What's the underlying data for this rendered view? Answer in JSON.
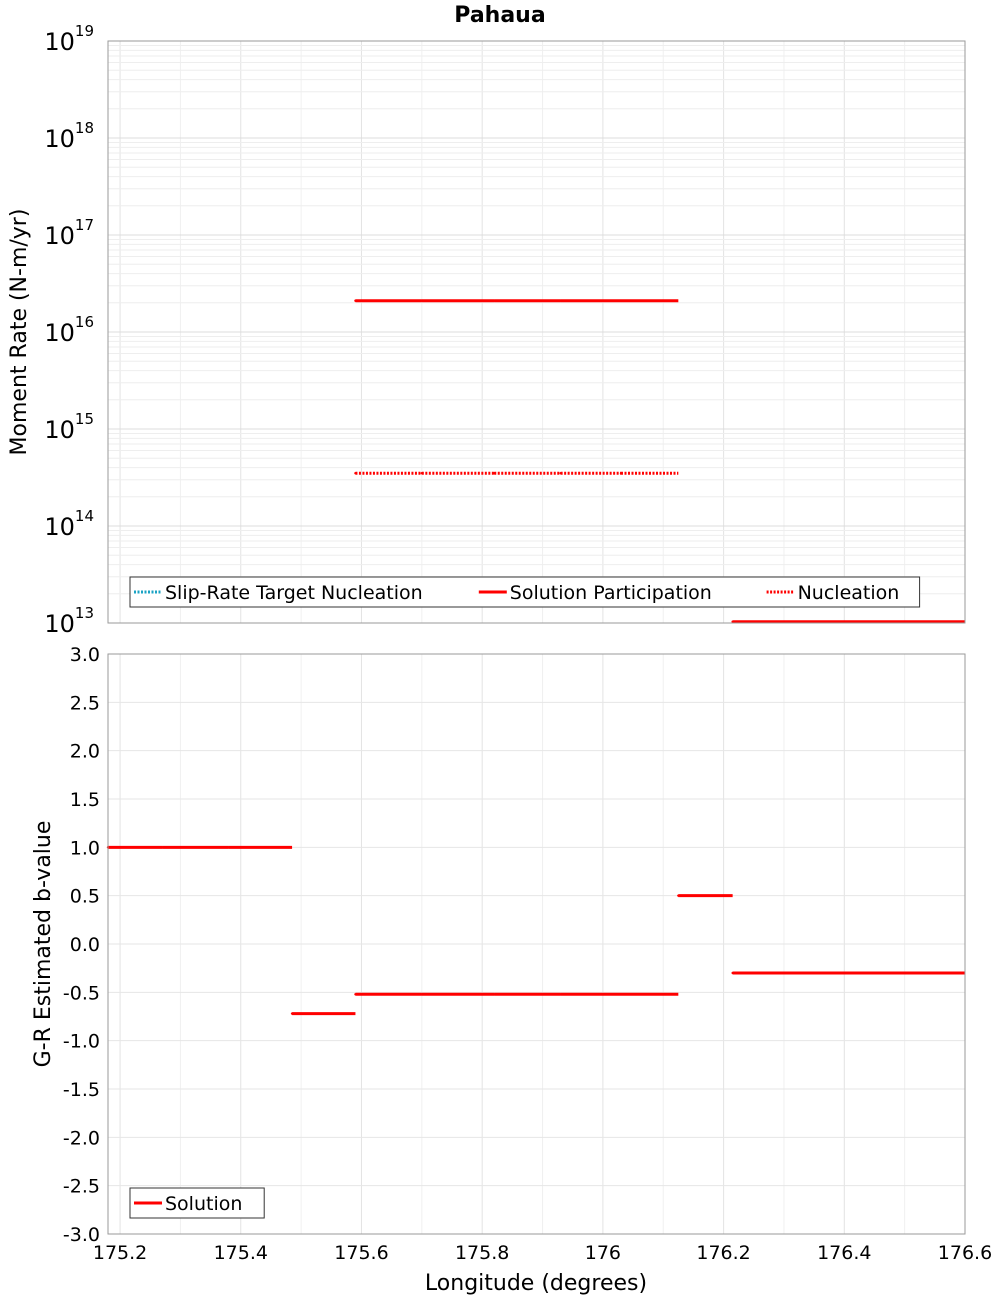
{
  "chart_data": {
    "title": "Pahaua",
    "xlabel": "Longitude (degrees)",
    "xlim": [
      175.18,
      176.6
    ],
    "xticks": [
      {
        "value": 175.2,
        "label": "175.2"
      },
      {
        "value": 175.4,
        "label": "175.4"
      },
      {
        "value": 175.6,
        "label": "175.6"
      },
      {
        "value": 175.8,
        "label": "175.8"
      },
      {
        "value": 176.0,
        "label": "176"
      },
      {
        "value": 176.2,
        "label": "176.2"
      },
      {
        "value": 176.4,
        "label": "176.4"
      },
      {
        "value": 176.6,
        "label": "176.6"
      }
    ],
    "panels": [
      {
        "id": "moment-rate",
        "type": "line",
        "yscale": "log",
        "ylabel": "Moment Rate (N-m/yr)",
        "ylim": [
          10000000000000.0,
          1e+19
        ],
        "yticks": [
          {
            "base": "10",
            "exp": "13"
          },
          {
            "base": "10",
            "exp": "14"
          },
          {
            "base": "10",
            "exp": "15"
          },
          {
            "base": "10",
            "exp": "16"
          },
          {
            "base": "10",
            "exp": "17"
          },
          {
            "base": "10",
            "exp": "18"
          },
          {
            "base": "10",
            "exp": "19"
          }
        ],
        "legend": {
          "position": "bottom-left",
          "entries": [
            {
              "label": "Slip-Rate Target Nucleation",
              "color": "#1aa3c4",
              "style": "dotted"
            },
            {
              "label": "Solution Participation",
              "color": "#ff0000",
              "style": "solid"
            },
            {
              "label": "Nucleation",
              "color": "#ff0000",
              "style": "dotted"
            }
          ]
        },
        "series": [
          {
            "name": "Solution Participation",
            "color": "#ff0000",
            "style": "solid",
            "segments": [
              {
                "x": [
                  175.59,
                  175.7
                ],
                "y": 2.1e+16
              },
              {
                "x": [
                  175.7,
                  175.82
                ],
                "y": 2.1e+16
              },
              {
                "x": [
                  175.82,
                  175.93
                ],
                "y": 2.1e+16
              },
              {
                "x": [
                  175.93,
                  176.03
                ],
                "y": 2.1e+16
              },
              {
                "x": [
                  176.03,
                  176.125
                ],
                "y": 2.1e+16
              },
              {
                "x": [
                  176.215,
                  176.6
                ],
                "y": 10300000000000.0
              }
            ]
          },
          {
            "name": "Nucleation",
            "color": "#ff0000",
            "style": "dotted",
            "segments": [
              {
                "x": [
                  175.59,
                  175.7
                ],
                "y": 350000000000000.0
              },
              {
                "x": [
                  175.7,
                  175.82
                ],
                "y": 350000000000000.0
              },
              {
                "x": [
                  175.82,
                  175.93
                ],
                "y": 350000000000000.0
              },
              {
                "x": [
                  175.93,
                  176.03
                ],
                "y": 350000000000000.0
              },
              {
                "x": [
                  176.03,
                  176.125
                ],
                "y": 350000000000000.0
              }
            ]
          }
        ]
      },
      {
        "id": "b-value",
        "type": "line",
        "yscale": "linear",
        "ylabel": "G-R Estimated b-value",
        "ylim": [
          -3.0,
          3.0
        ],
        "yticks": [
          {
            "value": 3.0,
            "label": "3.0"
          },
          {
            "value": 2.5,
            "label": "2.5"
          },
          {
            "value": 2.0,
            "label": "2.0"
          },
          {
            "value": 1.5,
            "label": "1.5"
          },
          {
            "value": 1.0,
            "label": "1.0"
          },
          {
            "value": 0.5,
            "label": "0.5"
          },
          {
            "value": 0.0,
            "label": "0.0"
          },
          {
            "value": -0.5,
            "label": "-0.5"
          },
          {
            "value": -1.0,
            "label": "-1.0"
          },
          {
            "value": -1.5,
            "label": "-1.5"
          },
          {
            "value": -2.0,
            "label": "-2.0"
          },
          {
            "value": -2.5,
            "label": "-2.5"
          },
          {
            "value": -3.0,
            "label": "-3.0"
          }
        ],
        "legend": {
          "position": "bottom-left",
          "entries": [
            {
              "label": "Solution",
              "color": "#ff0000",
              "style": "solid"
            }
          ]
        },
        "series": [
          {
            "name": "Solution",
            "color": "#ff0000",
            "style": "solid",
            "segments": [
              {
                "x": [
                  175.18,
                  175.27
                ],
                "y": 1.0
              },
              {
                "x": [
                  175.27,
                  175.38
                ],
                "y": 1.0
              },
              {
                "x": [
                  175.38,
                  175.485
                ],
                "y": 1.0
              },
              {
                "x": [
                  175.485,
                  175.59
                ],
                "y": -0.72
              },
              {
                "x": [
                  175.59,
                  175.7
                ],
                "y": -0.52
              },
              {
                "x": [
                  175.7,
                  175.82
                ],
                "y": -0.52
              },
              {
                "x": [
                  175.82,
                  175.93
                ],
                "y": -0.52
              },
              {
                "x": [
                  175.93,
                  176.03
                ],
                "y": -0.52
              },
              {
                "x": [
                  176.03,
                  176.125
                ],
                "y": -0.52
              },
              {
                "x": [
                  176.125,
                  176.215
                ],
                "y": 0.5
              },
              {
                "x": [
                  176.215,
                  176.6
                ],
                "y": -0.3
              }
            ]
          }
        ]
      }
    ]
  }
}
